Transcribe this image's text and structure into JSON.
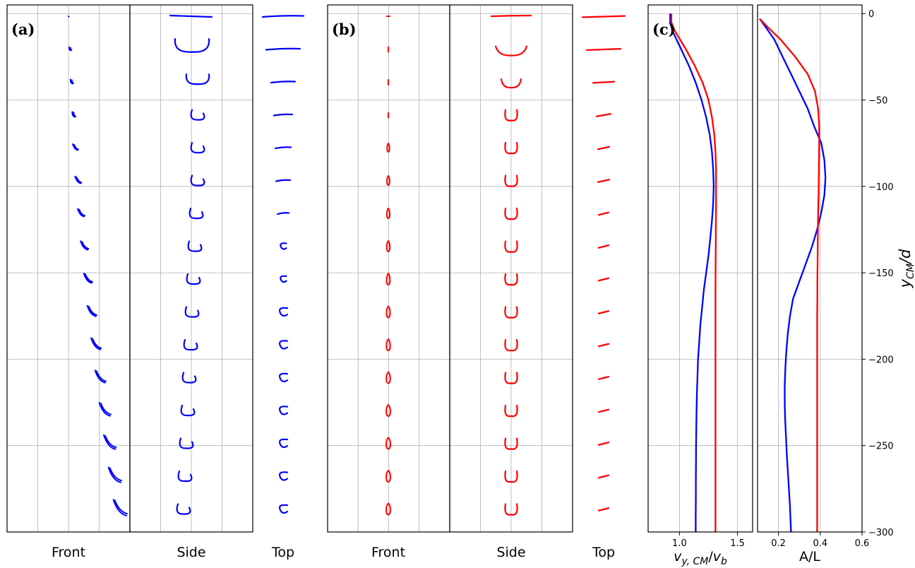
{
  "figure": {
    "panel_a": {
      "tag": "(a)",
      "labels": [
        "Front",
        "Side",
        "Top"
      ]
    },
    "panel_b": {
      "tag": "(b)",
      "labels": [
        "Front",
        "Side",
        "Top"
      ]
    },
    "panel_c": {
      "tag": "(c)",
      "xlabel_velocity": {
        "base": "v",
        "sub": "y, CM",
        "slash": "/",
        "base2": "v",
        "sub2": "b"
      },
      "xlabel_aspect": "A/L",
      "ylabel": {
        "base": "y",
        "sub": "CM",
        "rest": "/d"
      }
    }
  },
  "colors": {
    "series_blue": "#0000ff",
    "series_red": "#ff0000",
    "grid": "#b0b0b0",
    "frame": "#000000"
  },
  "chart_data": [
    {
      "type": "line",
      "panel": "c-left",
      "xlabel": "v_{y,CM}/v_b",
      "ylabel": "y_CM/d",
      "xlim": [
        0.73,
        1.63
      ],
      "ylim": [
        -300,
        5
      ],
      "xticks": [
        1.0,
        1.5
      ],
      "xtick_labels": [
        "1.0",
        "1.5"
      ],
      "yticks": [
        0,
        -50,
        -100,
        -150,
        -200,
        -250,
        -300
      ],
      "grid": true,
      "series": [
        {
          "color": "blue",
          "y": [
            0,
            -5,
            -10,
            -20,
            -30,
            -40,
            -50,
            -60,
            -70,
            -80,
            -90,
            -100,
            -110,
            -120,
            -130,
            -140,
            -150,
            -160,
            -170,
            -180,
            -190,
            -200,
            -210,
            -220,
            -230,
            -240,
            -250,
            -260,
            -270,
            -280,
            -290,
            -300
          ],
          "x": [
            0.92,
            0.92,
            0.94,
            1.01,
            1.08,
            1.14,
            1.19,
            1.23,
            1.26,
            1.28,
            1.29,
            1.295,
            1.29,
            1.28,
            1.265,
            1.25,
            1.23,
            1.21,
            1.195,
            1.18,
            1.17,
            1.16,
            1.155,
            1.15,
            1.147,
            1.145,
            1.143,
            1.142,
            1.141,
            1.141,
            1.14,
            1.14
          ]
        },
        {
          "color": "red",
          "y": [
            0,
            -5,
            -10,
            -20,
            -30,
            -40,
            -50,
            -60,
            -70,
            -80,
            -90,
            -100,
            -110,
            -120,
            -130,
            -140,
            -150,
            -160,
            -170,
            -180,
            -190,
            -200,
            -210,
            -220,
            -230,
            -240,
            -250,
            -260,
            -270,
            -280,
            -290,
            -300
          ],
          "x": [
            0.93,
            0.93,
            0.96,
            1.05,
            1.13,
            1.2,
            1.25,
            1.28,
            1.3,
            1.31,
            1.315,
            1.315,
            1.315,
            1.314,
            1.313,
            1.312,
            1.311,
            1.31,
            1.31,
            1.31,
            1.31,
            1.31,
            1.31,
            1.31,
            1.31,
            1.31,
            1.31,
            1.31,
            1.31,
            1.31,
            1.31,
            1.31
          ]
        }
      ]
    },
    {
      "type": "line",
      "panel": "c-right",
      "xlabel": "A/L",
      "ylabel": "y_CM/d",
      "xlim": [
        0.1,
        0.6
      ],
      "ylim": [
        -300,
        5
      ],
      "xticks": [
        0.2,
        0.4,
        0.6
      ],
      "xtick_labels": [
        "0.2",
        "0.4",
        "0.6"
      ],
      "yticks": [
        0,
        -50,
        -100,
        -150,
        -200,
        -250,
        -300
      ],
      "ytick_labels": [
        "0",
        "−50",
        "−100",
        "−150",
        "−200",
        "−250",
        "−300"
      ],
      "grid": true,
      "series": [
        {
          "color": "blue",
          "y": [
            -3,
            -8,
            -15,
            -25,
            -35,
            -45,
            -55,
            -65,
            -75,
            -85,
            -95,
            -105,
            -115,
            -125,
            -135,
            -145,
            -155,
            -165,
            -175,
            -185,
            -195,
            -205,
            -215,
            -225,
            -235,
            -245,
            -255,
            -265,
            -275,
            -285,
            -300
          ],
          "x": [
            0.11,
            0.14,
            0.18,
            0.22,
            0.26,
            0.3,
            0.34,
            0.37,
            0.405,
            0.42,
            0.425,
            0.42,
            0.405,
            0.385,
            0.36,
            0.33,
            0.3,
            0.27,
            0.255,
            0.245,
            0.238,
            0.233,
            0.23,
            0.23,
            0.232,
            0.236,
            0.24,
            0.245,
            0.25,
            0.255,
            0.26
          ]
        },
        {
          "color": "red",
          "y": [
            -3,
            -8,
            -15,
            -25,
            -35,
            -45,
            -55,
            -65,
            -75,
            -85,
            -95,
            -105,
            -115,
            -125,
            -135,
            -145,
            -155,
            -165,
            -175,
            -185,
            -195,
            -205,
            -215,
            -225,
            -235,
            -245,
            -255,
            -265,
            -275,
            -285,
            -300
          ],
          "x": [
            0.11,
            0.15,
            0.21,
            0.28,
            0.34,
            0.375,
            0.39,
            0.395,
            0.395,
            0.394,
            0.393,
            0.392,
            0.39,
            0.389,
            0.388,
            0.387,
            0.386,
            0.386,
            0.385,
            0.385,
            0.385,
            0.385,
            0.385,
            0.385,
            0.385,
            0.385,
            0.385,
            0.385,
            0.385,
            0.385,
            0.385
          ]
        }
      ]
    }
  ]
}
